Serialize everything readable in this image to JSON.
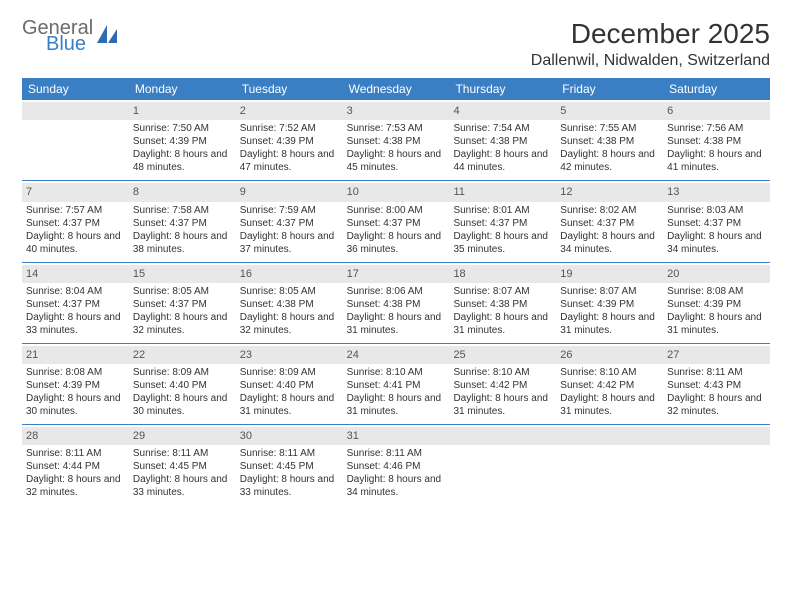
{
  "brand": {
    "line1": "General",
    "line2": "Blue"
  },
  "title": "December 2025",
  "location": "Dallenwil, Nidwalden, Switzerland",
  "colors": {
    "header_bg": "#3a7fc4",
    "header_text": "#ffffff",
    "daynum_bg": "#e8e8e8",
    "text": "#333333",
    "row_border": "#3a7fc4",
    "page_bg": "#ffffff"
  },
  "day_names": [
    "Sunday",
    "Monday",
    "Tuesday",
    "Wednesday",
    "Thursday",
    "Friday",
    "Saturday"
  ],
  "weeks": [
    [
      {
        "day": ""
      },
      {
        "day": "1",
        "sunrise": "Sunrise: 7:50 AM",
        "sunset": "Sunset: 4:39 PM",
        "daylight": "Daylight: 8 hours and 48 minutes."
      },
      {
        "day": "2",
        "sunrise": "Sunrise: 7:52 AM",
        "sunset": "Sunset: 4:39 PM",
        "daylight": "Daylight: 8 hours and 47 minutes."
      },
      {
        "day": "3",
        "sunrise": "Sunrise: 7:53 AM",
        "sunset": "Sunset: 4:38 PM",
        "daylight": "Daylight: 8 hours and 45 minutes."
      },
      {
        "day": "4",
        "sunrise": "Sunrise: 7:54 AM",
        "sunset": "Sunset: 4:38 PM",
        "daylight": "Daylight: 8 hours and 44 minutes."
      },
      {
        "day": "5",
        "sunrise": "Sunrise: 7:55 AM",
        "sunset": "Sunset: 4:38 PM",
        "daylight": "Daylight: 8 hours and 42 minutes."
      },
      {
        "day": "6",
        "sunrise": "Sunrise: 7:56 AM",
        "sunset": "Sunset: 4:38 PM",
        "daylight": "Daylight: 8 hours and 41 minutes."
      }
    ],
    [
      {
        "day": "7",
        "sunrise": "Sunrise: 7:57 AM",
        "sunset": "Sunset: 4:37 PM",
        "daylight": "Daylight: 8 hours and 40 minutes."
      },
      {
        "day": "8",
        "sunrise": "Sunrise: 7:58 AM",
        "sunset": "Sunset: 4:37 PM",
        "daylight": "Daylight: 8 hours and 38 minutes."
      },
      {
        "day": "9",
        "sunrise": "Sunrise: 7:59 AM",
        "sunset": "Sunset: 4:37 PM",
        "daylight": "Daylight: 8 hours and 37 minutes."
      },
      {
        "day": "10",
        "sunrise": "Sunrise: 8:00 AM",
        "sunset": "Sunset: 4:37 PM",
        "daylight": "Daylight: 8 hours and 36 minutes."
      },
      {
        "day": "11",
        "sunrise": "Sunrise: 8:01 AM",
        "sunset": "Sunset: 4:37 PM",
        "daylight": "Daylight: 8 hours and 35 minutes."
      },
      {
        "day": "12",
        "sunrise": "Sunrise: 8:02 AM",
        "sunset": "Sunset: 4:37 PM",
        "daylight": "Daylight: 8 hours and 34 minutes."
      },
      {
        "day": "13",
        "sunrise": "Sunrise: 8:03 AM",
        "sunset": "Sunset: 4:37 PM",
        "daylight": "Daylight: 8 hours and 34 minutes."
      }
    ],
    [
      {
        "day": "14",
        "sunrise": "Sunrise: 8:04 AM",
        "sunset": "Sunset: 4:37 PM",
        "daylight": "Daylight: 8 hours and 33 minutes."
      },
      {
        "day": "15",
        "sunrise": "Sunrise: 8:05 AM",
        "sunset": "Sunset: 4:37 PM",
        "daylight": "Daylight: 8 hours and 32 minutes."
      },
      {
        "day": "16",
        "sunrise": "Sunrise: 8:05 AM",
        "sunset": "Sunset: 4:38 PM",
        "daylight": "Daylight: 8 hours and 32 minutes."
      },
      {
        "day": "17",
        "sunrise": "Sunrise: 8:06 AM",
        "sunset": "Sunset: 4:38 PM",
        "daylight": "Daylight: 8 hours and 31 minutes."
      },
      {
        "day": "18",
        "sunrise": "Sunrise: 8:07 AM",
        "sunset": "Sunset: 4:38 PM",
        "daylight": "Daylight: 8 hours and 31 minutes."
      },
      {
        "day": "19",
        "sunrise": "Sunrise: 8:07 AM",
        "sunset": "Sunset: 4:39 PM",
        "daylight": "Daylight: 8 hours and 31 minutes."
      },
      {
        "day": "20",
        "sunrise": "Sunrise: 8:08 AM",
        "sunset": "Sunset: 4:39 PM",
        "daylight": "Daylight: 8 hours and 31 minutes."
      }
    ],
    [
      {
        "day": "21",
        "sunrise": "Sunrise: 8:08 AM",
        "sunset": "Sunset: 4:39 PM",
        "daylight": "Daylight: 8 hours and 30 minutes."
      },
      {
        "day": "22",
        "sunrise": "Sunrise: 8:09 AM",
        "sunset": "Sunset: 4:40 PM",
        "daylight": "Daylight: 8 hours and 30 minutes."
      },
      {
        "day": "23",
        "sunrise": "Sunrise: 8:09 AM",
        "sunset": "Sunset: 4:40 PM",
        "daylight": "Daylight: 8 hours and 31 minutes."
      },
      {
        "day": "24",
        "sunrise": "Sunrise: 8:10 AM",
        "sunset": "Sunset: 4:41 PM",
        "daylight": "Daylight: 8 hours and 31 minutes."
      },
      {
        "day": "25",
        "sunrise": "Sunrise: 8:10 AM",
        "sunset": "Sunset: 4:42 PM",
        "daylight": "Daylight: 8 hours and 31 minutes."
      },
      {
        "day": "26",
        "sunrise": "Sunrise: 8:10 AM",
        "sunset": "Sunset: 4:42 PM",
        "daylight": "Daylight: 8 hours and 31 minutes."
      },
      {
        "day": "27",
        "sunrise": "Sunrise: 8:11 AM",
        "sunset": "Sunset: 4:43 PM",
        "daylight": "Daylight: 8 hours and 32 minutes."
      }
    ],
    [
      {
        "day": "28",
        "sunrise": "Sunrise: 8:11 AM",
        "sunset": "Sunset: 4:44 PM",
        "daylight": "Daylight: 8 hours and 32 minutes."
      },
      {
        "day": "29",
        "sunrise": "Sunrise: 8:11 AM",
        "sunset": "Sunset: 4:45 PM",
        "daylight": "Daylight: 8 hours and 33 minutes."
      },
      {
        "day": "30",
        "sunrise": "Sunrise: 8:11 AM",
        "sunset": "Sunset: 4:45 PM",
        "daylight": "Daylight: 8 hours and 33 minutes."
      },
      {
        "day": "31",
        "sunrise": "Sunrise: 8:11 AM",
        "sunset": "Sunset: 4:46 PM",
        "daylight": "Daylight: 8 hours and 34 minutes."
      },
      {
        "day": ""
      },
      {
        "day": ""
      },
      {
        "day": ""
      }
    ]
  ]
}
